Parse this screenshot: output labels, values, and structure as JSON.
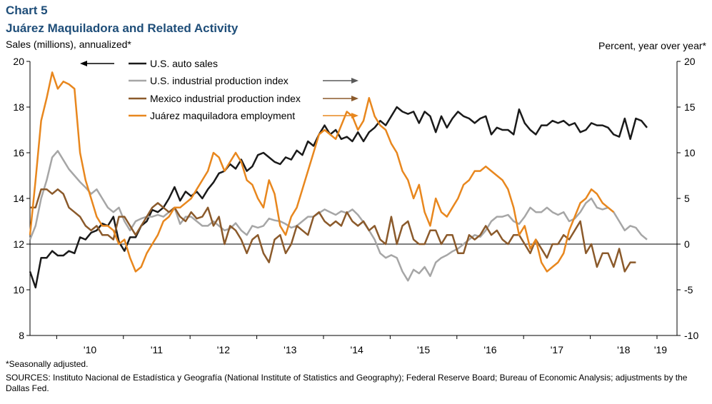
{
  "header": {
    "chart_label": "Chart 5",
    "title": "Juárez Maquiladora and Related Activity",
    "left_axis_label": "Sales (millions), annualized*",
    "right_axis_label": "Percent, year over year*"
  },
  "footer": {
    "note": "*Seasonally adjusted.",
    "sources": "SOURCES: Instituto Nacional de Estadística y Geografía (National Institute of Statistics and Geography); Federal Reserve Board; Bureau of Economic Analysis; adjustments by the Dallas Fed."
  },
  "chart_data": {
    "type": "line",
    "x_tick_labels": [
      "'10",
      "'11",
      "'12",
      "'13",
      "'14",
      "'15",
      "'16",
      "'17",
      "'18",
      "'19"
    ],
    "left_axis": {
      "min": 8,
      "max": 20,
      "ticks": [
        8,
        10,
        12,
        14,
        16,
        18,
        20
      ]
    },
    "right_axis": {
      "min": -10,
      "max": 20,
      "ticks": [
        -10,
        -5,
        0,
        5,
        10,
        15,
        20
      ]
    },
    "legend_placement": "top-center",
    "series": [
      {
        "name": "U.S. auto sales",
        "axis": "left",
        "color": "#1a1a1a",
        "arrow": "left",
        "start": 2009.6,
        "values": [
          10.8,
          10.1,
          11.4,
          11.4,
          11.7,
          11.5,
          11.5,
          11.7,
          11.6,
          12.3,
          12.2,
          12.5,
          12.6,
          12.9,
          12.8,
          13.2,
          12.1,
          11.7,
          12.3,
          12.3,
          12.8,
          13.0,
          13.5,
          13.4,
          13.6,
          14.0,
          14.5,
          13.9,
          14.3,
          14.1,
          14.3,
          14.0,
          14.4,
          14.7,
          15.1,
          15.2,
          15.5,
          15.3,
          15.7,
          15.2,
          15.4,
          15.9,
          16.0,
          15.8,
          15.6,
          15.5,
          15.8,
          15.7,
          16.1,
          15.9,
          16.5,
          16.3,
          16.8,
          17.2,
          16.8,
          17.0,
          16.6,
          16.7,
          16.5,
          16.9,
          16.5,
          16.9,
          17.1,
          17.4,
          17.2,
          17.6,
          18.0,
          17.8,
          17.7,
          17.8,
          17.3,
          17.8,
          17.6,
          16.9,
          17.6,
          17.1,
          17.5,
          17.8,
          17.6,
          17.5,
          17.3,
          17.5,
          17.6,
          16.8,
          17.1,
          17.0,
          17.0,
          16.8,
          17.9,
          17.3,
          17.0,
          16.8,
          17.2,
          17.2,
          17.4,
          17.3,
          17.4,
          17.2,
          17.3,
          16.9,
          17.0,
          17.3,
          17.2,
          17.2,
          17.1,
          16.8,
          16.7,
          17.5,
          16.6,
          17.5,
          17.4,
          17.1
        ]
      },
      {
        "name": "U.S. industrial production index",
        "axis": "right",
        "color": "#a6a6a6",
        "arrow": "right",
        "start": 2009.6,
        "values": [
          0.5,
          2.0,
          5.0,
          7.0,
          9.5,
          10.2,
          9.2,
          8.2,
          7.5,
          6.8,
          6.2,
          5.5,
          6.0,
          5.0,
          4.0,
          3.5,
          4.0,
          2.5,
          1.5,
          2.5,
          2.8,
          3.0,
          3.0,
          3.2,
          3.0,
          3.5,
          4.0,
          2.2,
          3.0,
          3.0,
          2.5,
          2.0,
          2.0,
          2.5,
          2.0,
          1.5,
          1.7,
          2.3,
          1.5,
          1.0,
          2.0,
          1.8,
          2.0,
          2.8,
          2.6,
          2.5,
          2.2,
          1.8,
          2.0,
          2.5,
          3.0,
          3.0,
          3.4,
          3.8,
          3.5,
          3.2,
          3.6,
          3.4,
          3.8,
          3.2,
          2.4,
          1.5,
          0.5,
          -1.0,
          -1.5,
          -1.2,
          -1.5,
          -3.0,
          -4.0,
          -2.8,
          -3.2,
          -2.5,
          -3.5,
          -2.0,
          -1.5,
          -1.2,
          -0.8,
          -0.5,
          0.0,
          0.5,
          1.0,
          0.8,
          1.5,
          2.5,
          3.0,
          3.0,
          3.2,
          2.5,
          2.2,
          3.0,
          4.0,
          3.5,
          3.5,
          4.0,
          3.5,
          3.2,
          3.5,
          2.5,
          2.8,
          3.5,
          4.5,
          5.0,
          4.0,
          3.8,
          4.0,
          3.5,
          2.5,
          1.5,
          2.0,
          1.8,
          1.0,
          0.5
        ]
      },
      {
        "name": "Mexico industrial production index",
        "axis": "right",
        "color": "#8b5a2b",
        "arrow": "right",
        "start": 2009.6,
        "values": [
          4.0,
          4.0,
          6.0,
          6.0,
          5.5,
          6.0,
          5.5,
          4.0,
          3.5,
          3.0,
          2.0,
          1.5,
          2.0,
          1.0,
          1.0,
          0.5,
          3.0,
          3.0,
          2.0,
          1.0,
          2.0,
          3.0,
          4.0,
          4.5,
          4.0,
          3.5,
          4.0,
          3.0,
          2.5,
          3.5,
          2.8,
          3.0,
          4.0,
          2.0,
          3.0,
          0.0,
          2.0,
          1.5,
          0.5,
          -1.0,
          0.5,
          1.0,
          -1.0,
          -2.0,
          0.5,
          1.0,
          -1.0,
          0.0,
          2.0,
          1.5,
          1.0,
          3.0,
          3.5,
          2.5,
          2.0,
          2.5,
          2.0,
          3.5,
          2.5,
          2.0,
          2.5,
          1.5,
          2.0,
          0.5,
          0.0,
          3.0,
          0.0,
          2.0,
          2.5,
          0.5,
          0.0,
          0.0,
          1.5,
          1.5,
          0.0,
          1.0,
          1.0,
          -1.0,
          -1.0,
          1.0,
          0.5,
          1.0,
          2.0,
          1.0,
          1.5,
          0.5,
          0.0,
          1.0,
          1.0,
          0.0,
          -1.0,
          0.5,
          -0.5,
          -1.5,
          0.0,
          0.0,
          1.0,
          0.5,
          1.5,
          2.5,
          -1.0,
          0.0,
          -2.5,
          -1.0,
          -1.0,
          -2.5,
          -0.5,
          -3.0,
          -2.0,
          -2.0
        ]
      },
      {
        "name": "Juárez maquiladora employment",
        "axis": "right",
        "color": "#e8871e",
        "arrow": "right",
        "start": 2009.6,
        "values": [
          1.0,
          7.0,
          13.5,
          16.0,
          18.8,
          17.0,
          17.8,
          17.5,
          17.0,
          10.0,
          7.0,
          5.0,
          3.0,
          2.0,
          2.0,
          1.5,
          0.0,
          0.5,
          -1.5,
          -3.0,
          -2.5,
          -1.0,
          0.0,
          1.0,
          2.5,
          3.0,
          4.0,
          4.0,
          4.5,
          5.0,
          6.0,
          7.0,
          8.0,
          10.0,
          9.5,
          8.0,
          9.0,
          10.0,
          9.0,
          7.0,
          6.5,
          5.0,
          4.0,
          7.0,
          5.5,
          2.0,
          1.0,
          3.0,
          4.0,
          6.0,
          8.0,
          10.0,
          12.0,
          12.5,
          12.0,
          11.5,
          13.0,
          14.5,
          14.0,
          12.5,
          13.5,
          16.0,
          14.0,
          13.0,
          12.5,
          11.0,
          10.0,
          8.0,
          7.0,
          5.0,
          6.5,
          3.5,
          2.0,
          5.0,
          3.5,
          3.0,
          4.0,
          5.0,
          6.5,
          7.0,
          8.0,
          8.0,
          8.5,
          8.0,
          7.5,
          7.0,
          6.0,
          4.0,
          1.0,
          2.0,
          -0.5,
          0.5,
          -2.0,
          -3.0,
          -2.5,
          -2.0,
          -1.0,
          1.5,
          3.0,
          4.5,
          5.0,
          6.0,
          5.5,
          4.5,
          4.0,
          3.5
        ]
      }
    ]
  }
}
